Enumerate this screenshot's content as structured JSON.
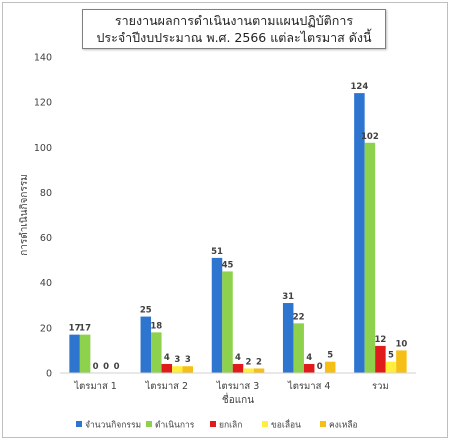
{
  "chart_data": {
    "type": "bar",
    "title": [
      "รายงานผลการดำเนินงานตามแผนปฏิบัติการ",
      "ประจำปีงบประมาณ พ.ศ. 2566 แต่ละไตรมาส ดังนี้"
    ],
    "xlabel": "ชื่อแกน",
    "ylabel": "การดำเนินกิจกรรม",
    "ylim": [
      0,
      140
    ],
    "yticks": [
      0,
      20,
      40,
      60,
      80,
      100,
      120,
      140
    ],
    "grid": false,
    "legend_position": "bottom",
    "categories": [
      "ไตรมาส 1",
      "ไตรมาส 2",
      "ไตรมาส 3",
      "ไตรมาส 4",
      "รวม"
    ],
    "series": [
      {
        "name": "จำนวนกิจกรรม",
        "color": "#2e75d0",
        "values": [
          17,
          25,
          51,
          31,
          124
        ]
      },
      {
        "name": "ดำเนินการ",
        "color": "#8ed14c",
        "values": [
          17,
          18,
          45,
          22,
          102
        ]
      },
      {
        "name": "ยกเลิก",
        "color": "#e01b1b",
        "values": [
          0,
          4,
          4,
          4,
          12
        ]
      },
      {
        "name": "ขอเลื่อน",
        "color": "#ffef3a",
        "values": [
          0,
          3,
          2,
          0,
          5
        ]
      },
      {
        "name": "คงเหลือ",
        "color": "#f6bf16",
        "values": [
          0,
          3,
          2,
          5,
          10
        ]
      }
    ]
  }
}
